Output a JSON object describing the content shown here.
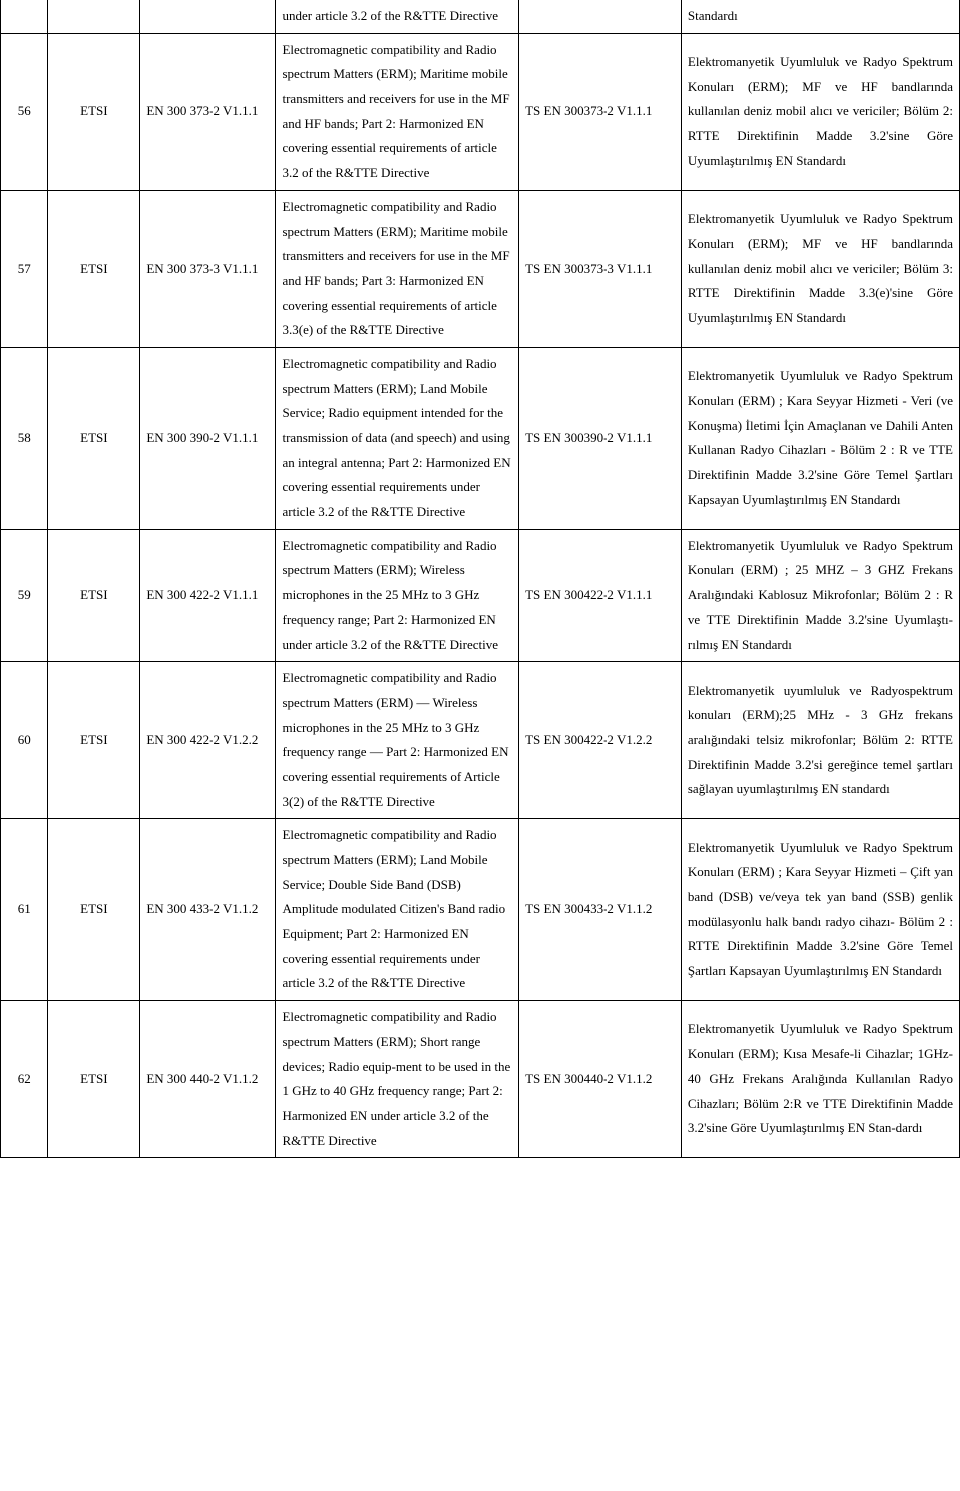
{
  "rows": [
    {
      "num": "",
      "org": "",
      "code": "",
      "desc_en": "under article 3.2 of the R&TTE Directive",
      "ts": "",
      "desc_tr": "Standardı",
      "partial": true
    },
    {
      "num": "56",
      "org": "ETSI",
      "code": "EN 300 373-2 V1.1.1",
      "desc_en": "Electromagnetic compatibility and Radio spectrum Matters (ERM); Maritime mobile transmitters and receivers for use in the MF and HF bands; Part 2: Harmonized EN covering essential requirements of article 3.2 of the R&TTE Directive",
      "ts": "TS EN 300373-2 V1.1.1",
      "desc_tr": "Elektromanyetik Uyumluluk ve Radyo Spektrum Konuları (ERM); MF ve HF bandlarında kullanılan deniz mobil alıcı ve vericiler; Bölüm 2: RTTE Direktifinin Madde 3.2'sine Göre Uyumlaştırılmış EN Standardı"
    },
    {
      "num": "57",
      "org": "ETSI",
      "code": "EN 300 373-3 V1.1.1",
      "desc_en": "Electromagnetic compatibility and Radio spectrum Matters (ERM); Maritime mobile transmitters and receivers for use in the MF and HF bands; Part 3: Harmonized EN covering essential requirements of article 3.3(e) of the R&TTE Directive",
      "ts": "TS EN 300373-3 V1.1.1",
      "desc_tr": "Elektromanyetik Uyumluluk ve Radyo Spektrum Konuları (ERM); MF ve HF bandlarında kullanılan deniz mobil alıcı ve vericiler; Bölüm 3: RTTE Direktifinin Madde 3.3(e)'sine Göre Uyumlaştırılmış EN Standardı"
    },
    {
      "num": "58",
      "org": "ETSI",
      "code": "EN 300 390-2 V1.1.1",
      "desc_en": "Electromagnetic compatibility and Radio spectrum Matters (ERM); Land Mobile Service; Radio equipment intended for the transmission of data (and speech) and using an integral antenna; Part 2: Harmonized EN covering essential requirements under article 3.2 of the R&TTE Directive",
      "ts": "TS EN 300390-2 V1.1.1",
      "desc_tr": "Elektromanyetik Uyumluluk ve Radyo Spektrum Konuları (ERM) ; Kara Seyyar Hizmeti - Veri (ve Konuşma) İletimi İçin Amaçlanan ve Dahili Anten Kullanan Radyo Cihazları - Bölüm 2 : R ve TTE Direktifinin Madde 3.2'sine Göre Temel Şartları Kapsayan Uyumlaştırılmış EN Standardı"
    },
    {
      "num": "59",
      "org": "ETSI",
      "code": "EN 300 422-2 V1.1.1",
      "desc_en": "Electromagnetic compatibility and Radio spectrum Matters (ERM); Wireless microphones in the 25 MHz to 3 GHz frequency range; Part 2: Harmonized EN under article 3.2 of the R&TTE Directive",
      "ts": "TS EN 300422-2 V1.1.1",
      "desc_tr": "Elektromanyetik Uyumluluk ve Radyo Spektrum Konuları (ERM) ; 25 MHZ – 3 GHZ Frekans Aralığındaki Kablosuz Mikrofonlar; Bölüm 2 : R ve TTE Direktifinin Madde 3.2'sine Uyumlaştı-rılmış EN Standardı"
    },
    {
      "num": "60",
      "org": "ETSI",
      "code": "EN 300 422-2 V1.2.2",
      "desc_en": "Electromagnetic compatibility and Radio spectrum Matters (ERM) — Wireless microphones in the 25 MHz to 3 GHz frequency range — Part 2: Harmonized EN covering essential requirements of Article 3(2) of the R&TTE Directive",
      "ts": "TS EN 300422-2 V1.2.2",
      "desc_tr": "Elektromanyetik uyumluluk ve Radyospektrum konuları (ERM);25 MHz - 3 GHz frekans aralığındaki telsiz mikrofonlar; Bölüm 2: RTTE Direktifinin Madde 3.2'si gereğince temel şartları sağlayan uyumlaştırılmış EN standardı"
    },
    {
      "num": "61",
      "org": "ETSI",
      "code": "EN 300 433-2 V1.1.2",
      "desc_en": "Electromagnetic compatibility and Radio spectrum Matters (ERM); Land Mobile Service; Double Side Band (DSB) Amplitude modulated Citizen's Band radio Equipment; Part 2: Harmonized EN covering essential requirements under article 3.2 of the R&TTE Directive",
      "ts": "TS EN 300433-2 V1.1.2",
      "desc_tr": "Elektromanyetik Uyumluluk ve Radyo Spektrum Konuları (ERM) ; Kara Seyyar Hizmeti – Çift yan band (DSB) ve/veya tek yan band (SSB) genlik modülasyonlu halk bandı radyo cihazı- Bölüm 2 : RTTE Direktifinin Madde 3.2'sine Göre Temel Şartları Kapsayan Uyumlaştırılmış EN Standardı"
    },
    {
      "num": "62",
      "org": "ETSI",
      "code": "EN 300 440-2 V1.1.2",
      "desc_en": "Electromagnetic compatibility and Radio spectrum Matters (ERM); Short range devices; Radio equip-ment to be used in the 1 GHz to 40 GHz frequency range; Part 2: Harmonized EN under article 3.2 of the R&TTE Directive",
      "ts": "TS EN 300440-2 V1.1.2",
      "desc_tr": "Elektromanyetik Uyumluluk ve Radyo Spektrum Konuları (ERM); Kısa Mesafe-li Cihazlar; 1GHz-40 GHz Frekans Aralığında Kullanılan Radyo Cihazları; Bölüm 2:R ve TTE Direktifinin Madde 3.2'sine Göre Uyumlaştırılmış EN Stan-dardı"
    }
  ]
}
